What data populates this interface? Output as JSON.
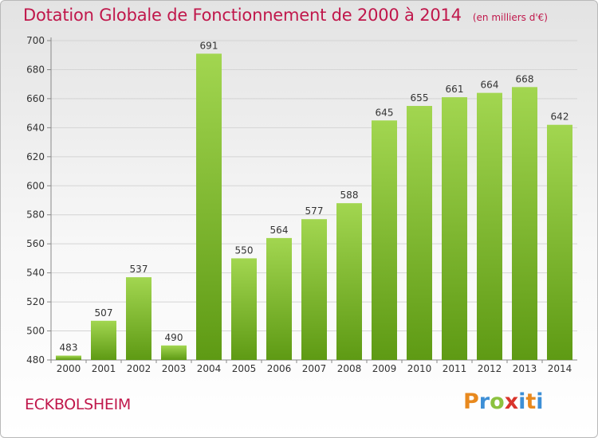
{
  "header": {
    "title": "Dotation Globale de Fonctionnement de 2000 à 2014",
    "unit": "(en milliers d'€)"
  },
  "footer": {
    "commune": "ECKBOLSHEIM",
    "logo_text": "Proxiti"
  },
  "colors": {
    "title": "#c0174b",
    "bar_light": "#9ed14a",
    "bar_dark": "#5f9c15"
  },
  "chart_data": {
    "type": "bar",
    "title": "Dotation Globale de Fonctionnement de 2000 à 2014",
    "subtitle": "(en milliers d'€)",
    "xlabel": "",
    "ylabel": "",
    "categories": [
      "2000",
      "2001",
      "2002",
      "2003",
      "2004",
      "2005",
      "2006",
      "2007",
      "2008",
      "2009",
      "2010",
      "2011",
      "2012",
      "2013",
      "2014"
    ],
    "values": [
      483,
      507,
      537,
      490,
      691,
      550,
      564,
      577,
      588,
      645,
      655,
      661,
      664,
      668,
      642
    ],
    "ylim": [
      480,
      700
    ],
    "yticks": [
      480,
      500,
      520,
      540,
      560,
      580,
      600,
      620,
      640,
      660,
      680,
      700
    ],
    "grid": true,
    "legend": "none"
  }
}
